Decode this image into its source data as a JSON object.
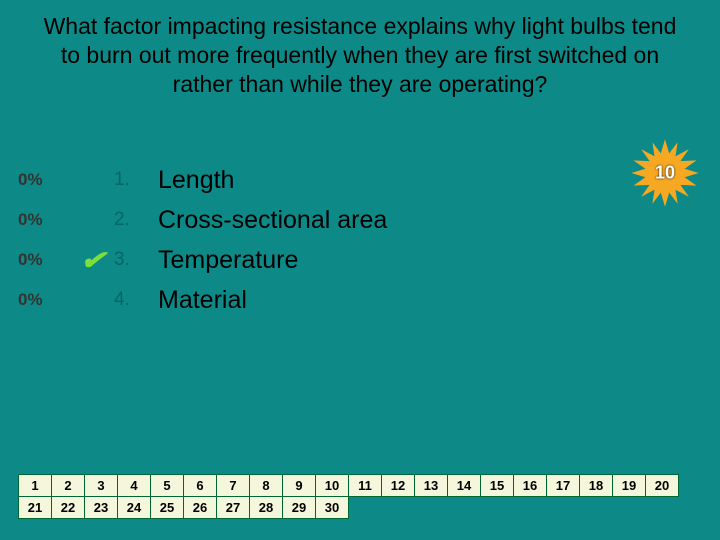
{
  "question": "What factor impacting resistance explains why light bulbs tend to burn out more frequently when they are first switched on rather than while they are operating?",
  "answers": [
    {
      "pct": "0%",
      "num": "1.",
      "text": "Length",
      "correct": false
    },
    {
      "pct": "0%",
      "num": "2.",
      "text": "Cross-sectional area",
      "correct": false
    },
    {
      "pct": "0%",
      "num": "3.",
      "text": "Temperature",
      "correct": true
    },
    {
      "pct": "0%",
      "num": "4.",
      "text": "Material",
      "correct": false
    }
  ],
  "burst": {
    "value": "10",
    "fill": "#f7a823",
    "text_color": "#ffffff"
  },
  "grid": {
    "rows": [
      [
        "1",
        "2",
        "3",
        "4",
        "5",
        "6",
        "7",
        "8",
        "9",
        "10",
        "11",
        "12",
        "13",
        "14",
        "15",
        "16",
        "17",
        "18",
        "19",
        "20"
      ],
      [
        "21",
        "22",
        "23",
        "24",
        "25",
        "26",
        "27",
        "28",
        "29",
        "30"
      ]
    ],
    "cell_bg": "#f5f7dc",
    "cell_border": "#006644"
  },
  "colors": {
    "background": "#0d8a87",
    "answer_number": "#006666",
    "check": "#7be03a"
  }
}
